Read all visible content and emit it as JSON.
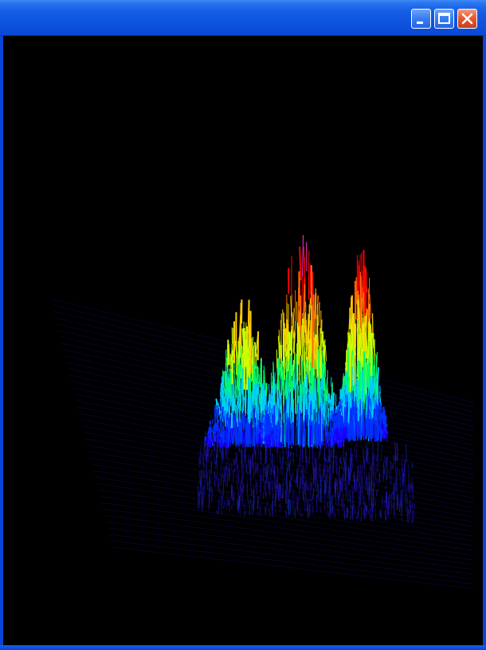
{
  "window": {
    "title": "",
    "frame_color": "#0a46d6",
    "background_color": "#000000",
    "buttons": {
      "minimize_icon": "minimize-icon",
      "maximize_icon": "maximize-icon",
      "close_icon": "close-icon"
    }
  },
  "surface_plot": {
    "type": "3d-wireframe-surface",
    "colormap": [
      "#1a00ff",
      "#0033ff",
      "#00ccff",
      "#00ff66",
      "#ccff00",
      "#ffcc00",
      "#ff6600",
      "#ff0000",
      "#ff33cc"
    ],
    "peaks": [
      {
        "name": "",
        "relative_height": 0.72
      },
      {
        "name": "",
        "relative_height": 1.0
      },
      {
        "name": "",
        "relative_height": 0.93
      }
    ]
  }
}
